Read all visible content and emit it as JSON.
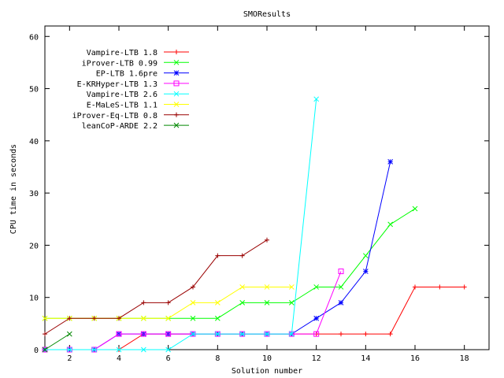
{
  "chart_data": {
    "type": "line",
    "title": "SMOResults",
    "xlabel": "Solution number",
    "ylabel": "CPU time in seconds",
    "xlim": [
      1,
      19
    ],
    "ylim": [
      0,
      62
    ],
    "xticks": [
      2,
      4,
      6,
      8,
      10,
      12,
      14,
      16,
      18
    ],
    "yticks": [
      0,
      10,
      20,
      30,
      40,
      50,
      60
    ],
    "grid": false,
    "legend_position": "top-left",
    "series": [
      {
        "name": "Vampire-LTB 1.8",
        "color": "#ff0000",
        "marker": "plus",
        "x": [
          1,
          2,
          3,
          4,
          5,
          6,
          7,
          8,
          9,
          10,
          11,
          12,
          13,
          14,
          15,
          16,
          17,
          18
        ],
        "y": [
          0,
          0,
          0,
          0,
          3,
          3,
          3,
          3,
          3,
          3,
          3,
          3,
          3,
          3,
          3,
          12,
          12,
          12
        ]
      },
      {
        "name": "iProver-LTB 0.99",
        "color": "#00ff00",
        "marker": "cross",
        "x": [
          1,
          2,
          3,
          4,
          5,
          6,
          7,
          8,
          9,
          10,
          11,
          12,
          13,
          14,
          15,
          16
        ],
        "y": [
          6,
          6,
          6,
          6,
          6,
          6,
          6,
          6,
          9,
          9,
          9,
          12,
          12,
          18,
          24,
          27
        ]
      },
      {
        "name": "EP-LTB 1.6pre",
        "color": "#0000ff",
        "marker": "star",
        "x": [
          1,
          2,
          3,
          4,
          5,
          6,
          7,
          8,
          9,
          10,
          11,
          12,
          13,
          14,
          15
        ],
        "y": [
          0,
          0,
          0,
          3,
          3,
          3,
          3,
          3,
          3,
          3,
          3,
          6,
          9,
          15,
          36
        ]
      },
      {
        "name": "E-KRHyper-LTB 1.3",
        "color": "#ff00ff",
        "marker": "square",
        "x": [
          1,
          2,
          3,
          4,
          5,
          6,
          7,
          8,
          9,
          10,
          11,
          12,
          13
        ],
        "y": [
          0,
          0,
          0,
          3,
          3,
          3,
          3,
          3,
          3,
          3,
          3,
          3,
          15
        ]
      },
      {
        "name": "Vampire-LTB 2.6",
        "color": "#00ffff",
        "marker": "cross",
        "x": [
          1,
          2,
          3,
          4,
          5,
          6,
          7,
          8,
          9,
          10,
          11,
          12
        ],
        "y": [
          0,
          0,
          0,
          0,
          0,
          0,
          3,
          3,
          3,
          3,
          3,
          48
        ]
      },
      {
        "name": "E-MaLeS-LTB 1.1",
        "color": "#ffff00",
        "marker": "cross",
        "x": [
          1,
          2,
          3,
          4,
          5,
          6,
          7,
          8,
          9,
          10,
          11
        ],
        "y": [
          6,
          6,
          6,
          6,
          6,
          6,
          9,
          9,
          12,
          12,
          12
        ]
      },
      {
        "name": "iProver-Eq-LTB 0.8",
        "color": "#990000",
        "marker": "plus",
        "x": [
          1,
          2,
          3,
          4,
          5,
          6,
          7,
          8,
          9,
          10
        ],
        "y": [
          3,
          6,
          6,
          6,
          9,
          9,
          12,
          18,
          18,
          21
        ]
      },
      {
        "name": "leanCoP-ARDE 2.2",
        "color": "#008800",
        "marker": "cross",
        "x": [
          1,
          2
        ],
        "y": [
          0,
          3
        ]
      }
    ]
  }
}
